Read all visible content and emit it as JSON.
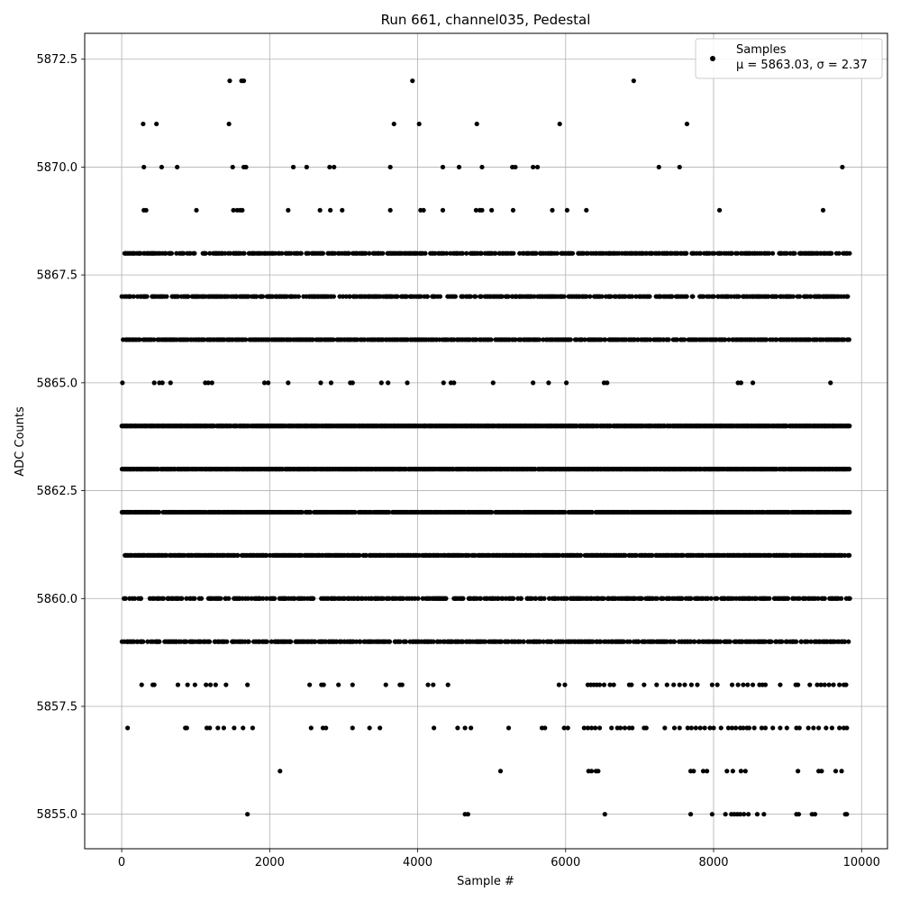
{
  "chart_data": {
    "type": "scatter",
    "title": "Run 661, channel035, Pedestal",
    "xlabel": "Sample #",
    "ylabel": "ADC Counts",
    "xlim": [
      -500,
      10350
    ],
    "ylim": [
      5854.2,
      5873.1
    ],
    "x_ticks": [
      0,
      2000,
      4000,
      6000,
      8000,
      10000
    ],
    "y_ticks": [
      5855.0,
      5857.5,
      5860.0,
      5862.5,
      5865.0,
      5867.5,
      5870.0,
      5872.5
    ],
    "x_tick_labels": [
      "0",
      "2000",
      "4000",
      "6000",
      "8000",
      "10000"
    ],
    "y_tick_labels": [
      "5855.0",
      "5857.5",
      "5860.0",
      "5862.5",
      "5865.0",
      "5867.5",
      "5870.0",
      "5872.5"
    ],
    "grid": true,
    "legend_position": "top-right",
    "legend": {
      "label": "Samples",
      "stats": "μ = 5863.03, σ = 2.37"
    },
    "marker_color": "#000000",
    "series": [
      {
        "name": "Samples",
        "points": [
          [
            1460,
            5872
          ],
          [
            1620,
            5872
          ],
          [
            1650,
            5872
          ],
          [
            3930,
            5872
          ],
          [
            6920,
            5872
          ],
          [
            290,
            5871
          ],
          [
            470,
            5871
          ],
          [
            1450,
            5871
          ],
          [
            3680,
            5871
          ],
          [
            4020,
            5871
          ],
          [
            4800,
            5871
          ],
          [
            5920,
            5871
          ],
          [
            7640,
            5871
          ],
          [
            300,
            5870
          ],
          [
            540,
            5870
          ],
          [
            750,
            5870
          ],
          [
            1500,
            5870
          ],
          [
            1650,
            5870
          ],
          [
            1680,
            5870
          ],
          [
            2320,
            5870
          ],
          [
            2500,
            5870
          ],
          [
            2810,
            5870
          ],
          [
            2870,
            5870
          ],
          [
            3630,
            5870
          ],
          [
            4340,
            5870
          ],
          [
            4560,
            5870
          ],
          [
            4870,
            5870
          ],
          [
            5280,
            5870
          ],
          [
            5320,
            5870
          ],
          [
            5560,
            5870
          ],
          [
            5620,
            5870
          ],
          [
            7260,
            5870
          ],
          [
            7540,
            5870
          ],
          [
            9740,
            5870
          ],
          [
            300,
            5869
          ],
          [
            330,
            5869
          ],
          [
            1010,
            5869
          ],
          [
            1510,
            5869
          ],
          [
            1560,
            5869
          ],
          [
            1600,
            5869
          ],
          [
            1630,
            5869
          ],
          [
            2250,
            5869
          ],
          [
            2680,
            5869
          ],
          [
            2820,
            5869
          ],
          [
            2980,
            5869
          ],
          [
            3630,
            5869
          ],
          [
            4040,
            5869
          ],
          [
            4080,
            5869
          ],
          [
            4340,
            5869
          ],
          [
            4790,
            5869
          ],
          [
            4840,
            5869
          ],
          [
            4870,
            5869
          ],
          [
            5000,
            5869
          ],
          [
            5290,
            5869
          ],
          [
            5820,
            5869
          ],
          [
            6020,
            5869
          ],
          [
            6280,
            5869
          ],
          [
            8080,
            5869
          ],
          [
            9480,
            5869
          ],
          [
            10,
            5865
          ],
          [
            440,
            5865
          ],
          [
            510,
            5865
          ],
          [
            550,
            5865
          ],
          [
            660,
            5865
          ],
          [
            1130,
            5865
          ],
          [
            1170,
            5865
          ],
          [
            1220,
            5865
          ],
          [
            1930,
            5865
          ],
          [
            1980,
            5865
          ],
          [
            2250,
            5865
          ],
          [
            2690,
            5865
          ],
          [
            2830,
            5865
          ],
          [
            3090,
            5865
          ],
          [
            3120,
            5865
          ],
          [
            3510,
            5865
          ],
          [
            3600,
            5865
          ],
          [
            3860,
            5865
          ],
          [
            4350,
            5865
          ],
          [
            4450,
            5865
          ],
          [
            4490,
            5865
          ],
          [
            5020,
            5865
          ],
          [
            5560,
            5865
          ],
          [
            5770,
            5865
          ],
          [
            6010,
            5865
          ],
          [
            6520,
            5865
          ],
          [
            6560,
            5865
          ],
          [
            8330,
            5865
          ],
          [
            8370,
            5865
          ],
          [
            8530,
            5865
          ],
          [
            9580,
            5865
          ],
          [
            270,
            5858
          ],
          [
            420,
            5858
          ],
          [
            440,
            5858
          ],
          [
            760,
            5858
          ],
          [
            890,
            5858
          ],
          [
            990,
            5858
          ],
          [
            1140,
            5858
          ],
          [
            1200,
            5858
          ],
          [
            1270,
            5858
          ],
          [
            1410,
            5858
          ],
          [
            1700,
            5858
          ],
          [
            2540,
            5858
          ],
          [
            2700,
            5858
          ],
          [
            2730,
            5858
          ],
          [
            2930,
            5858
          ],
          [
            3120,
            5858
          ],
          [
            3570,
            5858
          ],
          [
            3760,
            5858
          ],
          [
            3790,
            5858
          ],
          [
            4140,
            5858
          ],
          [
            4210,
            5858
          ],
          [
            4410,
            5858
          ],
          [
            5910,
            5858
          ],
          [
            5990,
            5858
          ],
          [
            6300,
            5858
          ],
          [
            6340,
            5858
          ],
          [
            6380,
            5858
          ],
          [
            6420,
            5858
          ],
          [
            6460,
            5858
          ],
          [
            6520,
            5858
          ],
          [
            6600,
            5858
          ],
          [
            6650,
            5858
          ],
          [
            6860,
            5858
          ],
          [
            6890,
            5858
          ],
          [
            7060,
            5858
          ],
          [
            7230,
            5858
          ],
          [
            7370,
            5858
          ],
          [
            7460,
            5858
          ],
          [
            7540,
            5858
          ],
          [
            7610,
            5858
          ],
          [
            7700,
            5858
          ],
          [
            7780,
            5858
          ],
          [
            7980,
            5858
          ],
          [
            8050,
            5858
          ],
          [
            8250,
            5858
          ],
          [
            8330,
            5858
          ],
          [
            8400,
            5858
          ],
          [
            8460,
            5858
          ],
          [
            8530,
            5858
          ],
          [
            8620,
            5858
          ],
          [
            8660,
            5858
          ],
          [
            8700,
            5858
          ],
          [
            8900,
            5858
          ],
          [
            9110,
            5858
          ],
          [
            9140,
            5858
          ],
          [
            9300,
            5858
          ],
          [
            9400,
            5858
          ],
          [
            9450,
            5858
          ],
          [
            9500,
            5858
          ],
          [
            9560,
            5858
          ],
          [
            9620,
            5858
          ],
          [
            9700,
            5858
          ],
          [
            9760,
            5858
          ],
          [
            9790,
            5858
          ],
          [
            80,
            5857
          ],
          [
            860,
            5857
          ],
          [
            880,
            5857
          ],
          [
            1150,
            5857
          ],
          [
            1190,
            5857
          ],
          [
            1300,
            5857
          ],
          [
            1380,
            5857
          ],
          [
            1520,
            5857
          ],
          [
            1640,
            5857
          ],
          [
            1770,
            5857
          ],
          [
            2560,
            5857
          ],
          [
            2720,
            5857
          ],
          [
            2760,
            5857
          ],
          [
            3120,
            5857
          ],
          [
            3350,
            5857
          ],
          [
            3490,
            5857
          ],
          [
            4220,
            5857
          ],
          [
            4540,
            5857
          ],
          [
            4640,
            5857
          ],
          [
            4720,
            5857
          ],
          [
            5230,
            5857
          ],
          [
            5680,
            5857
          ],
          [
            5720,
            5857
          ],
          [
            5980,
            5857
          ],
          [
            6030,
            5857
          ],
          [
            6250,
            5857
          ],
          [
            6300,
            5857
          ],
          [
            6350,
            5857
          ],
          [
            6400,
            5857
          ],
          [
            6460,
            5857
          ],
          [
            6620,
            5857
          ],
          [
            6700,
            5857
          ],
          [
            6740,
            5857
          ],
          [
            6800,
            5857
          ],
          [
            6860,
            5857
          ],
          [
            6900,
            5857
          ],
          [
            7060,
            5857
          ],
          [
            7090,
            5857
          ],
          [
            7340,
            5857
          ],
          [
            7470,
            5857
          ],
          [
            7540,
            5857
          ],
          [
            7650,
            5857
          ],
          [
            7700,
            5857
          ],
          [
            7760,
            5857
          ],
          [
            7820,
            5857
          ],
          [
            7880,
            5857
          ],
          [
            7950,
            5857
          ],
          [
            8000,
            5857
          ],
          [
            8100,
            5857
          ],
          [
            8200,
            5857
          ],
          [
            8250,
            5857
          ],
          [
            8300,
            5857
          ],
          [
            8360,
            5857
          ],
          [
            8400,
            5857
          ],
          [
            8450,
            5857
          ],
          [
            8480,
            5857
          ],
          [
            8550,
            5857
          ],
          [
            8650,
            5857
          ],
          [
            8700,
            5857
          ],
          [
            8800,
            5857
          ],
          [
            8900,
            5857
          ],
          [
            8990,
            5857
          ],
          [
            9120,
            5857
          ],
          [
            9160,
            5857
          ],
          [
            9280,
            5857
          ],
          [
            9350,
            5857
          ],
          [
            9420,
            5857
          ],
          [
            9520,
            5857
          ],
          [
            9600,
            5857
          ],
          [
            9700,
            5857
          ],
          [
            9760,
            5857
          ],
          [
            9800,
            5857
          ],
          [
            2140,
            5856
          ],
          [
            5120,
            5856
          ],
          [
            6310,
            5856
          ],
          [
            6350,
            5856
          ],
          [
            6410,
            5856
          ],
          [
            6440,
            5856
          ],
          [
            7690,
            5856
          ],
          [
            7730,
            5856
          ],
          [
            7860,
            5856
          ],
          [
            7910,
            5856
          ],
          [
            8180,
            5856
          ],
          [
            8260,
            5856
          ],
          [
            8370,
            5856
          ],
          [
            8430,
            5856
          ],
          [
            9140,
            5856
          ],
          [
            9420,
            5856
          ],
          [
            9460,
            5856
          ],
          [
            9650,
            5856
          ],
          [
            9730,
            5856
          ],
          [
            1700,
            5855
          ],
          [
            4640,
            5855
          ],
          [
            4680,
            5855
          ],
          [
            6530,
            5855
          ],
          [
            7690,
            5855
          ],
          [
            7980,
            5855
          ],
          [
            8160,
            5855
          ],
          [
            8240,
            5855
          ],
          [
            8280,
            5855
          ],
          [
            8320,
            5855
          ],
          [
            8360,
            5855
          ],
          [
            8410,
            5855
          ],
          [
            8470,
            5855
          ],
          [
            8590,
            5855
          ],
          [
            8680,
            5855
          ],
          [
            9120,
            5855
          ],
          [
            9150,
            5855
          ],
          [
            9330,
            5855
          ],
          [
            9370,
            5855
          ],
          [
            9780,
            5855
          ],
          [
            9800,
            5855
          ]
        ],
        "dense_bands": [
          {
            "y": 5868,
            "x": [
              0,
              9840
            ],
            "density": 0.62
          },
          {
            "y": 5867,
            "x": [
              0,
              9840
            ],
            "density": 0.62
          },
          {
            "y": 5866,
            "x": [
              0,
              9840
            ],
            "density": 0.72
          },
          {
            "y": 5864,
            "x": [
              0,
              9840
            ],
            "density": 0.96
          },
          {
            "y": 5863,
            "x": [
              0,
              9840
            ],
            "density": 0.96
          },
          {
            "y": 5862,
            "x": [
              0,
              9840
            ],
            "density": 0.9
          },
          {
            "y": 5861,
            "x": [
              40,
              9840
            ],
            "density": 0.8
          },
          {
            "y": 5860,
            "x": [
              20,
              9840
            ],
            "density": 0.56
          },
          {
            "y": 5859,
            "x": [
              0,
              9840
            ],
            "density": 0.66
          }
        ]
      }
    ]
  }
}
